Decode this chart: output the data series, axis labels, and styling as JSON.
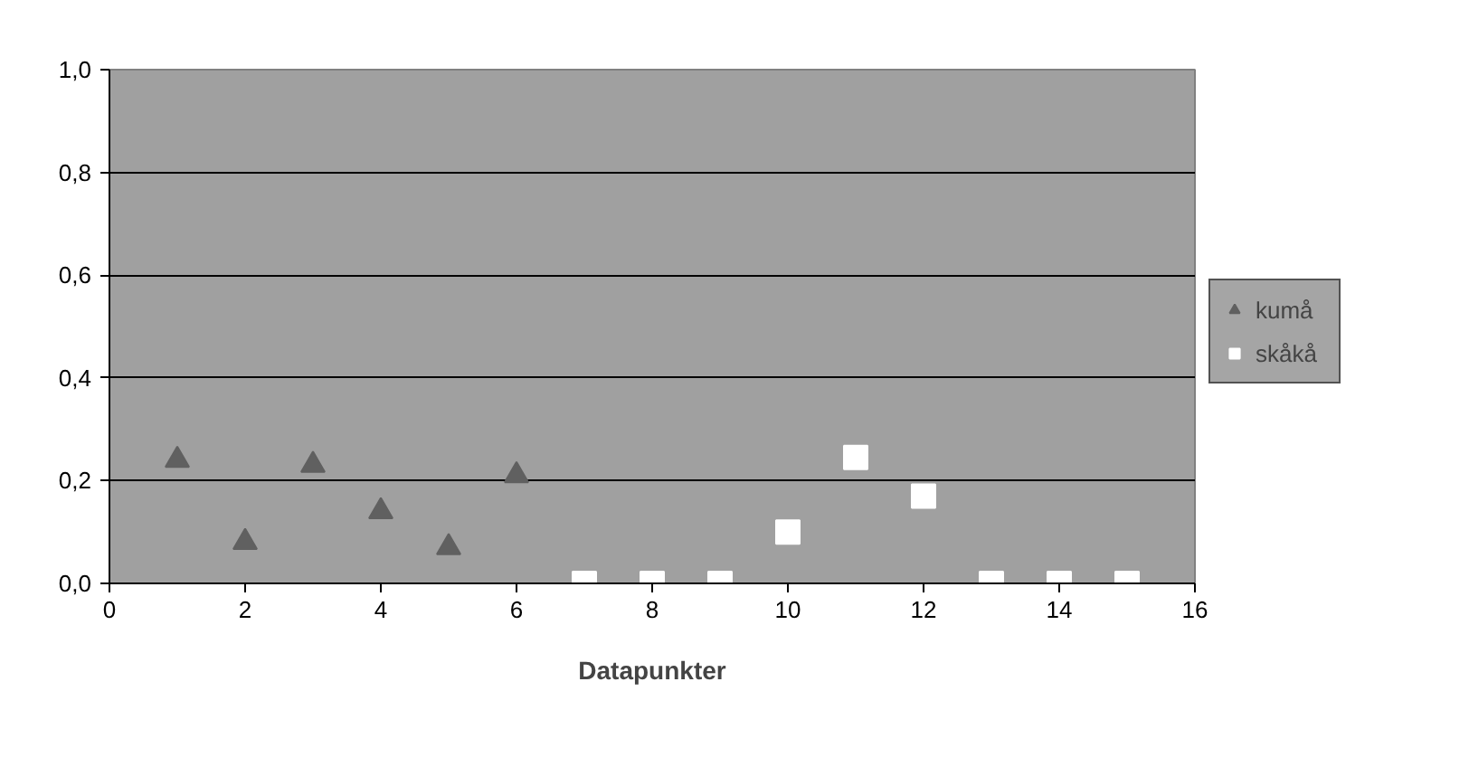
{
  "chart_data": {
    "type": "scatter",
    "xlabel": "Datapunkter",
    "series": [
      {
        "name": "kumå",
        "color": "#606060",
        "marker": "triangle",
        "x": [
          1,
          2,
          3,
          4,
          5,
          6
        ],
        "values": [
          0.24,
          0.08,
          0.23,
          0.14,
          0.07,
          0.21
        ]
      },
      {
        "name": "skåkå",
        "color": "#ffffff",
        "marker": "square",
        "x": [
          7,
          8,
          9,
          10,
          11,
          12,
          13,
          14,
          15
        ],
        "values": [
          0,
          0,
          0,
          0.1,
          0.245,
          0.17,
          0,
          0,
          0
        ]
      }
    ],
    "xlim": [
      0,
      16
    ],
    "xticks": [
      0,
      2,
      4,
      6,
      8,
      10,
      12,
      14,
      16
    ],
    "ylim": [
      0,
      1
    ],
    "yticks": [
      {
        "value": 0,
        "label": "0,0"
      },
      {
        "value": 0.2,
        "label": "0,2"
      },
      {
        "value": 0.4,
        "label": "0,4"
      },
      {
        "value": 0.6,
        "label": "0,6"
      },
      {
        "value": 0.8,
        "label": "0,8"
      },
      {
        "value": 1,
        "label": "1,0"
      }
    ],
    "grid": "y",
    "legend": "right"
  }
}
